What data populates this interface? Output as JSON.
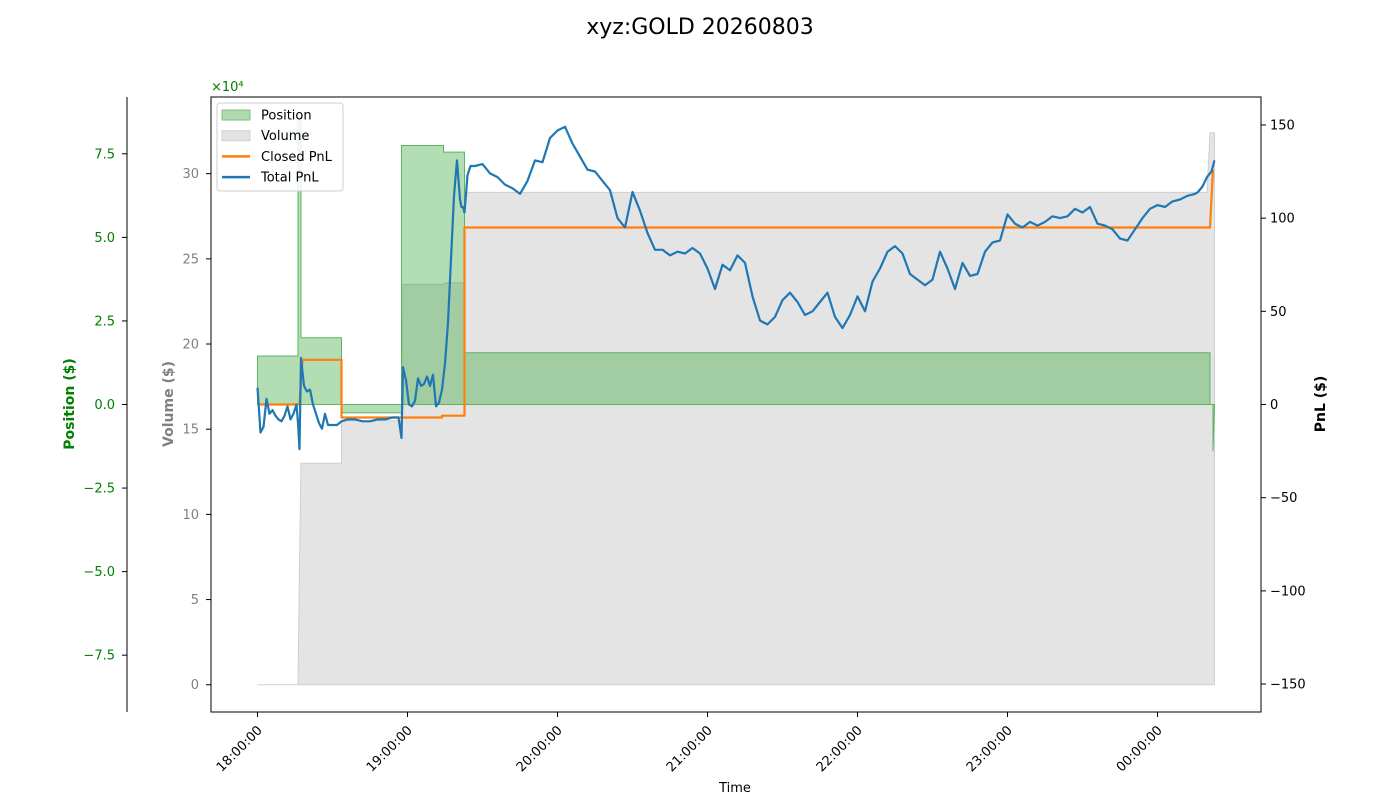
{
  "chart_data": {
    "type": "area",
    "title": "xyz:GOLD 20260803",
    "xlabel": "Time",
    "x_ticks": [
      "18:00:00",
      "19:00:00",
      "20:00:00",
      "21:00:00",
      "22:00:00",
      "23:00:00",
      "00:00:00"
    ],
    "x_range_hours": [
      17.69,
      24.69
    ],
    "axes": {
      "position": {
        "label": "Position ($)",
        "color": "#008000",
        "scale_text": "×10⁴",
        "unit_multiplier": 10000,
        "ylim": [
          -9.2,
          9.2
        ],
        "ticks": [
          -7.5,
          -5.0,
          -2.5,
          0.0,
          2.5,
          5.0,
          7.5
        ],
        "tick_labels": [
          "−7.5",
          "−5.0",
          "−2.5",
          "0.0",
          "2.5",
          "5.0",
          "7.5"
        ]
      },
      "volume": {
        "label": "Volume ($)",
        "color": "#808080",
        "ylim": [
          -1.6,
          34.5
        ],
        "ticks": [
          0,
          5,
          10,
          15,
          20,
          25,
          30
        ],
        "tick_labels": [
          "0",
          "5",
          "10",
          "15",
          "20",
          "25",
          "30"
        ]
      },
      "pnl": {
        "label": "PnL ($)",
        "color": "#000000",
        "ylim": [
          -165,
          165
        ],
        "ticks": [
          -150,
          -100,
          -50,
          0,
          50,
          100,
          150
        ],
        "tick_labels": [
          "−150",
          "−100",
          "−50",
          "0",
          "50",
          "100",
          "150"
        ]
      }
    },
    "legend": {
      "placement": "upper-left",
      "entries": [
        {
          "label": "Position",
          "kind": "patch",
          "color": "#b0d9b0",
          "edge": "#7fbf7f"
        },
        {
          "label": "Volume",
          "kind": "patch",
          "color": "#e3e3e3",
          "edge": "#d0d0d0"
        },
        {
          "label": "Closed PnL",
          "kind": "line",
          "color": "#ff7f0e"
        },
        {
          "label": "Total PnL",
          "kind": "line",
          "color": "#1f77b4"
        }
      ]
    },
    "series": [
      {
        "name": "Position",
        "axis": "position",
        "style": "step-area",
        "color": "#2ca02c",
        "points": [
          [
            18.0,
            0
          ],
          [
            18.0,
            1.45
          ],
          [
            18.27,
            1.45
          ],
          [
            18.27,
            8.6
          ],
          [
            18.29,
            8.6
          ],
          [
            18.29,
            2.0
          ],
          [
            18.56,
            2.0
          ],
          [
            18.56,
            -0.25
          ],
          [
            18.96,
            -0.25
          ],
          [
            18.96,
            7.75
          ],
          [
            19.24,
            7.75
          ],
          [
            19.24,
            7.55
          ],
          [
            19.38,
            7.55
          ],
          [
            19.38,
            1.55
          ],
          [
            24.35,
            1.55
          ],
          [
            24.35,
            0
          ],
          [
            24.37,
            0
          ],
          [
            24.37,
            -1.4
          ],
          [
            24.38,
            0
          ]
        ]
      },
      {
        "name": "Volume",
        "axis": "volume",
        "style": "step-area",
        "color": "#e3e3e3",
        "points": [
          [
            18.0,
            0
          ],
          [
            18.27,
            0
          ],
          [
            18.28,
            7
          ],
          [
            18.29,
            13
          ],
          [
            18.56,
            13
          ],
          [
            18.56,
            15.5
          ],
          [
            18.96,
            15.5
          ],
          [
            18.97,
            23.5
          ],
          [
            19.24,
            23.5
          ],
          [
            19.25,
            23.6
          ],
          [
            19.38,
            23.6
          ],
          [
            19.38,
            28.9
          ],
          [
            24.33,
            28.9
          ],
          [
            24.35,
            32.4
          ],
          [
            24.38,
            32.4
          ],
          [
            24.38,
            0
          ]
        ]
      },
      {
        "name": "Closed PnL",
        "axis": "pnl",
        "style": "step-line",
        "color": "#ff7f0e",
        "points": [
          [
            18.0,
            0
          ],
          [
            18.28,
            0
          ],
          [
            18.3,
            24
          ],
          [
            18.56,
            24
          ],
          [
            18.56,
            -7
          ],
          [
            19.23,
            -7
          ],
          [
            19.23,
            -6
          ],
          [
            19.38,
            -6
          ],
          [
            19.38,
            95
          ],
          [
            24.35,
            95
          ],
          [
            24.37,
            126
          ]
        ]
      },
      {
        "name": "Total PnL",
        "axis": "pnl",
        "style": "line",
        "color": "#1f77b4",
        "points": [
          [
            18.0,
            9
          ],
          [
            18.02,
            -15
          ],
          [
            18.04,
            -12
          ],
          [
            18.06,
            3
          ],
          [
            18.08,
            -5
          ],
          [
            18.1,
            -3
          ],
          [
            18.12,
            -6
          ],
          [
            18.14,
            -8
          ],
          [
            18.16,
            -9
          ],
          [
            18.18,
            -6
          ],
          [
            18.2,
            -1
          ],
          [
            18.22,
            -8
          ],
          [
            18.24,
            -5
          ],
          [
            18.26,
            0
          ],
          [
            18.27,
            -10
          ],
          [
            18.28,
            -24
          ],
          [
            18.29,
            25
          ],
          [
            18.31,
            10
          ],
          [
            18.33,
            7
          ],
          [
            18.35,
            8
          ],
          [
            18.37,
            0
          ],
          [
            18.39,
            -5
          ],
          [
            18.41,
            -10
          ],
          [
            18.43,
            -13
          ],
          [
            18.45,
            -5
          ],
          [
            18.47,
            -11
          ],
          [
            18.5,
            -11
          ],
          [
            18.53,
            -11
          ],
          [
            18.56,
            -9
          ],
          [
            18.6,
            -8
          ],
          [
            18.65,
            -8
          ],
          [
            18.7,
            -9
          ],
          [
            18.75,
            -9
          ],
          [
            18.8,
            -8
          ],
          [
            18.85,
            -8
          ],
          [
            18.9,
            -7
          ],
          [
            18.94,
            -7
          ],
          [
            18.96,
            -18
          ],
          [
            18.97,
            20
          ],
          [
            18.99,
            13
          ],
          [
            19.01,
            0
          ],
          [
            19.03,
            -1
          ],
          [
            19.05,
            2
          ],
          [
            19.07,
            14
          ],
          [
            19.09,
            10
          ],
          [
            19.11,
            11
          ],
          [
            19.13,
            15
          ],
          [
            19.15,
            10
          ],
          [
            19.17,
            16
          ],
          [
            19.19,
            -1
          ],
          [
            19.21,
            1
          ],
          [
            19.23,
            8
          ],
          [
            19.25,
            22
          ],
          [
            19.27,
            44
          ],
          [
            19.29,
            78
          ],
          [
            19.31,
            112
          ],
          [
            19.33,
            131
          ],
          [
            19.35,
            110
          ],
          [
            19.36,
            106
          ],
          [
            19.37,
            106
          ],
          [
            19.38,
            103
          ],
          [
            19.4,
            123
          ],
          [
            19.42,
            128
          ],
          [
            19.45,
            128
          ],
          [
            19.5,
            129
          ],
          [
            19.55,
            124
          ],
          [
            19.6,
            122
          ],
          [
            19.65,
            118
          ],
          [
            19.7,
            116
          ],
          [
            19.75,
            113
          ],
          [
            19.8,
            120
          ],
          [
            19.85,
            131
          ],
          [
            19.9,
            130
          ],
          [
            19.95,
            143
          ],
          [
            20.0,
            147
          ],
          [
            20.05,
            149
          ],
          [
            20.1,
            140
          ],
          [
            20.15,
            133
          ],
          [
            20.2,
            126
          ],
          [
            20.25,
            125
          ],
          [
            20.3,
            120
          ],
          [
            20.35,
            115
          ],
          [
            20.4,
            100
          ],
          [
            20.45,
            95
          ],
          [
            20.5,
            114
          ],
          [
            20.55,
            104
          ],
          [
            20.6,
            92
          ],
          [
            20.65,
            83
          ],
          [
            20.7,
            83
          ],
          [
            20.75,
            80
          ],
          [
            20.8,
            82
          ],
          [
            20.85,
            81
          ],
          [
            20.9,
            84
          ],
          [
            20.95,
            81
          ],
          [
            21.0,
            73
          ],
          [
            21.05,
            62
          ],
          [
            21.1,
            75
          ],
          [
            21.15,
            72
          ],
          [
            21.2,
            80
          ],
          [
            21.25,
            76
          ],
          [
            21.3,
            58
          ],
          [
            21.35,
            45
          ],
          [
            21.4,
            43
          ],
          [
            21.45,
            47
          ],
          [
            21.5,
            56
          ],
          [
            21.55,
            60
          ],
          [
            21.6,
            55
          ],
          [
            21.65,
            48
          ],
          [
            21.7,
            50
          ],
          [
            21.75,
            55
          ],
          [
            21.8,
            60
          ],
          [
            21.85,
            47
          ],
          [
            21.9,
            41
          ],
          [
            21.95,
            48
          ],
          [
            22.0,
            58
          ],
          [
            22.05,
            50
          ],
          [
            22.1,
            66
          ],
          [
            22.15,
            73
          ],
          [
            22.2,
            82
          ],
          [
            22.25,
            85
          ],
          [
            22.3,
            81
          ],
          [
            22.35,
            70
          ],
          [
            22.4,
            67
          ],
          [
            22.45,
            64
          ],
          [
            22.5,
            67
          ],
          [
            22.55,
            82
          ],
          [
            22.6,
            73
          ],
          [
            22.65,
            62
          ],
          [
            22.7,
            76
          ],
          [
            22.75,
            69
          ],
          [
            22.8,
            70
          ],
          [
            22.85,
            82
          ],
          [
            22.9,
            87
          ],
          [
            22.95,
            88
          ],
          [
            23.0,
            102
          ],
          [
            23.05,
            97
          ],
          [
            23.1,
            95
          ],
          [
            23.15,
            98
          ],
          [
            23.2,
            96
          ],
          [
            23.25,
            98
          ],
          [
            23.3,
            101
          ],
          [
            23.35,
            100
          ],
          [
            23.4,
            101
          ],
          [
            23.45,
            105
          ],
          [
            23.5,
            103
          ],
          [
            23.55,
            106
          ],
          [
            23.6,
            97
          ],
          [
            23.65,
            96
          ],
          [
            23.7,
            94
          ],
          [
            23.75,
            89
          ],
          [
            23.8,
            88
          ],
          [
            23.85,
            94
          ],
          [
            23.9,
            100
          ],
          [
            23.95,
            105
          ],
          [
            24.0,
            107
          ],
          [
            24.05,
            106
          ],
          [
            24.1,
            109
          ],
          [
            24.15,
            110
          ],
          [
            24.2,
            112
          ],
          [
            24.25,
            113
          ],
          [
            24.27,
            114
          ],
          [
            24.3,
            117
          ],
          [
            24.33,
            122
          ],
          [
            24.36,
            125
          ],
          [
            24.38,
            131
          ]
        ]
      }
    ]
  }
}
